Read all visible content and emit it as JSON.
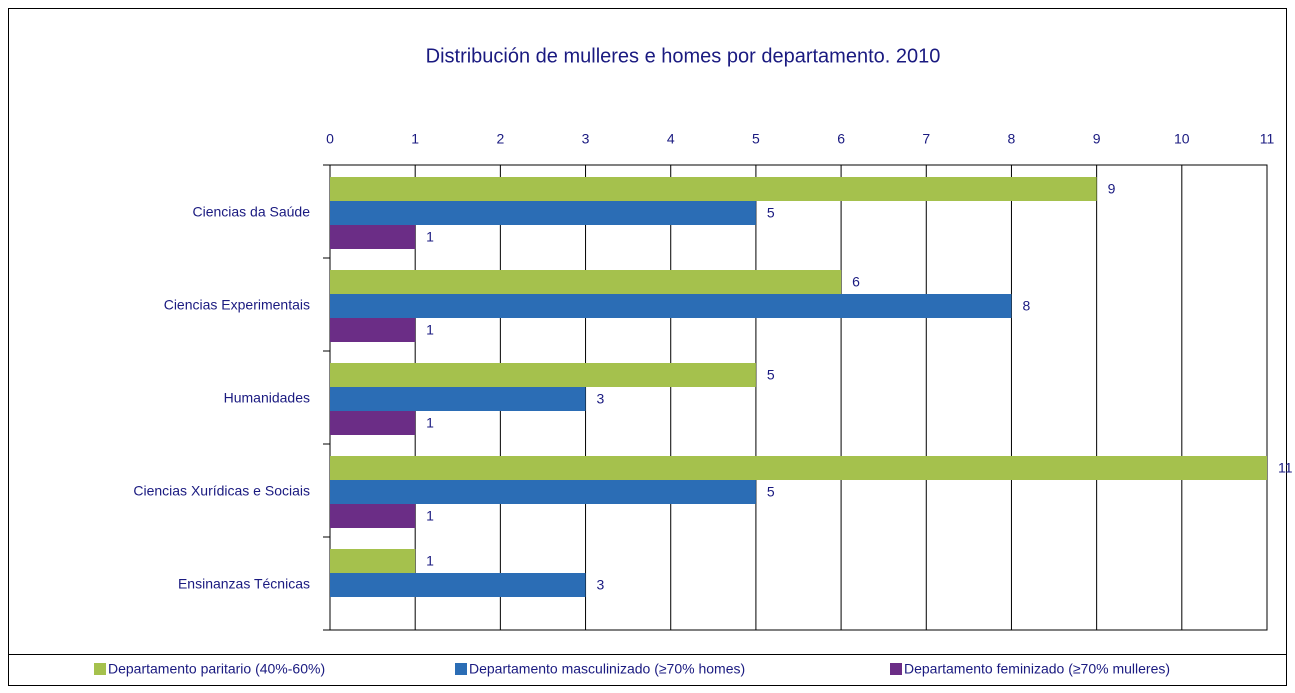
{
  "chart_data": {
    "type": "bar",
    "orientation": "horizontal",
    "title": "Distribución de mulleres e homes por departamento. 2010",
    "categories": [
      "Ciencias da Saúde",
      "Ciencias Experimentais",
      "Humanidades",
      "Ciencias Xurídicas e Sociais",
      "Ensinanzas Técnicas"
    ],
    "series": [
      {
        "name": "Departamento paritario (40%-60%)",
        "color": "#a5c14d",
        "values": [
          9,
          6,
          5,
          11,
          1
        ]
      },
      {
        "name": "Departamento masculinizado (≥70% homes)",
        "color": "#2b6db5",
        "values": [
          5,
          8,
          3,
          5,
          3
        ]
      },
      {
        "name": "Departamento feminizado (≥70% mulleres)",
        "color": "#6b2d86",
        "values": [
          1,
          1,
          1,
          1,
          null
        ]
      }
    ],
    "xlim": [
      0,
      11
    ],
    "xticks": [
      0,
      1,
      2,
      3,
      4,
      5,
      6,
      7,
      8,
      9,
      10,
      11
    ],
    "grid": true,
    "legend": "bottom"
  }
}
